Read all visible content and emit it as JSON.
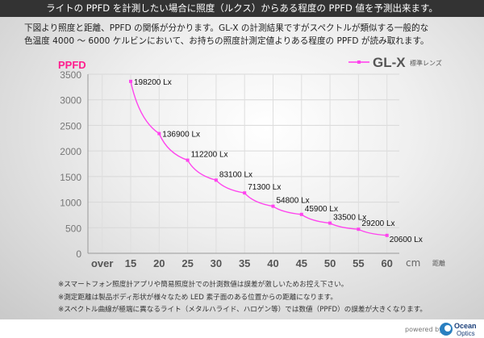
{
  "header": {
    "title": "ライトの PPFD を計測したい場合に照度（ルクス）からある程度の PPFD 値を予測出来ます。"
  },
  "intro": {
    "line1": "下図より照度と距離、PPFD の関係が分かります。GL-X の計測結果ですがスペクトルが類似する一般的な",
    "line2": "色温度 4000 ～ 6000 ケルビンにおいて、お持ちの照度計測定値よりある程度の PPFD が読み取れます。"
  },
  "chart_data": {
    "type": "line",
    "ylabel": "PPFD",
    "xlabel_unit": "cm",
    "xlabel": "距離",
    "ylim": [
      0,
      3500
    ],
    "yticks": [
      0,
      500,
      1000,
      1500,
      2000,
      2500,
      3000,
      3500
    ],
    "categories": [
      "over",
      "15",
      "20",
      "25",
      "30",
      "35",
      "40",
      "45",
      "50",
      "55",
      "60"
    ],
    "grid": true,
    "legend": {
      "name": "GL-X",
      "sub": "標準レンズ",
      "placement": "top-right"
    },
    "series": [
      {
        "name": "GL-X",
        "color": "#ff44ee",
        "x": [
          15,
          20,
          25,
          30,
          35,
          40,
          45,
          50,
          55,
          60
        ],
        "values": [
          3360,
          2340,
          1820,
          1430,
          1180,
          920,
          760,
          590,
          470,
          350
        ],
        "labels": [
          "198200 Lx",
          "136900 Lx",
          "112200 Lx",
          "83100 Lx",
          "71300 Lx",
          "54800 Lx",
          "45900 Lx",
          "33500 Lx",
          "29200 Lx",
          "20600 Lx"
        ]
      }
    ]
  },
  "notes": [
    "※スマートフォン照度計アプリや簡易照度計での計測数値は誤差が激しいためお控え下さい。",
    "※測定距離は製品ボディ形状が様々なため LED 素子面のある位置からの距離になります。",
    "※スペクトル曲線が極端に異なるライト（メタルハライド、ハロゲン等）では数値（PPFD）の誤差が大きくなります。"
  ],
  "footer": {
    "powered": "powered by",
    "logo_text": "Ocean Optics"
  }
}
